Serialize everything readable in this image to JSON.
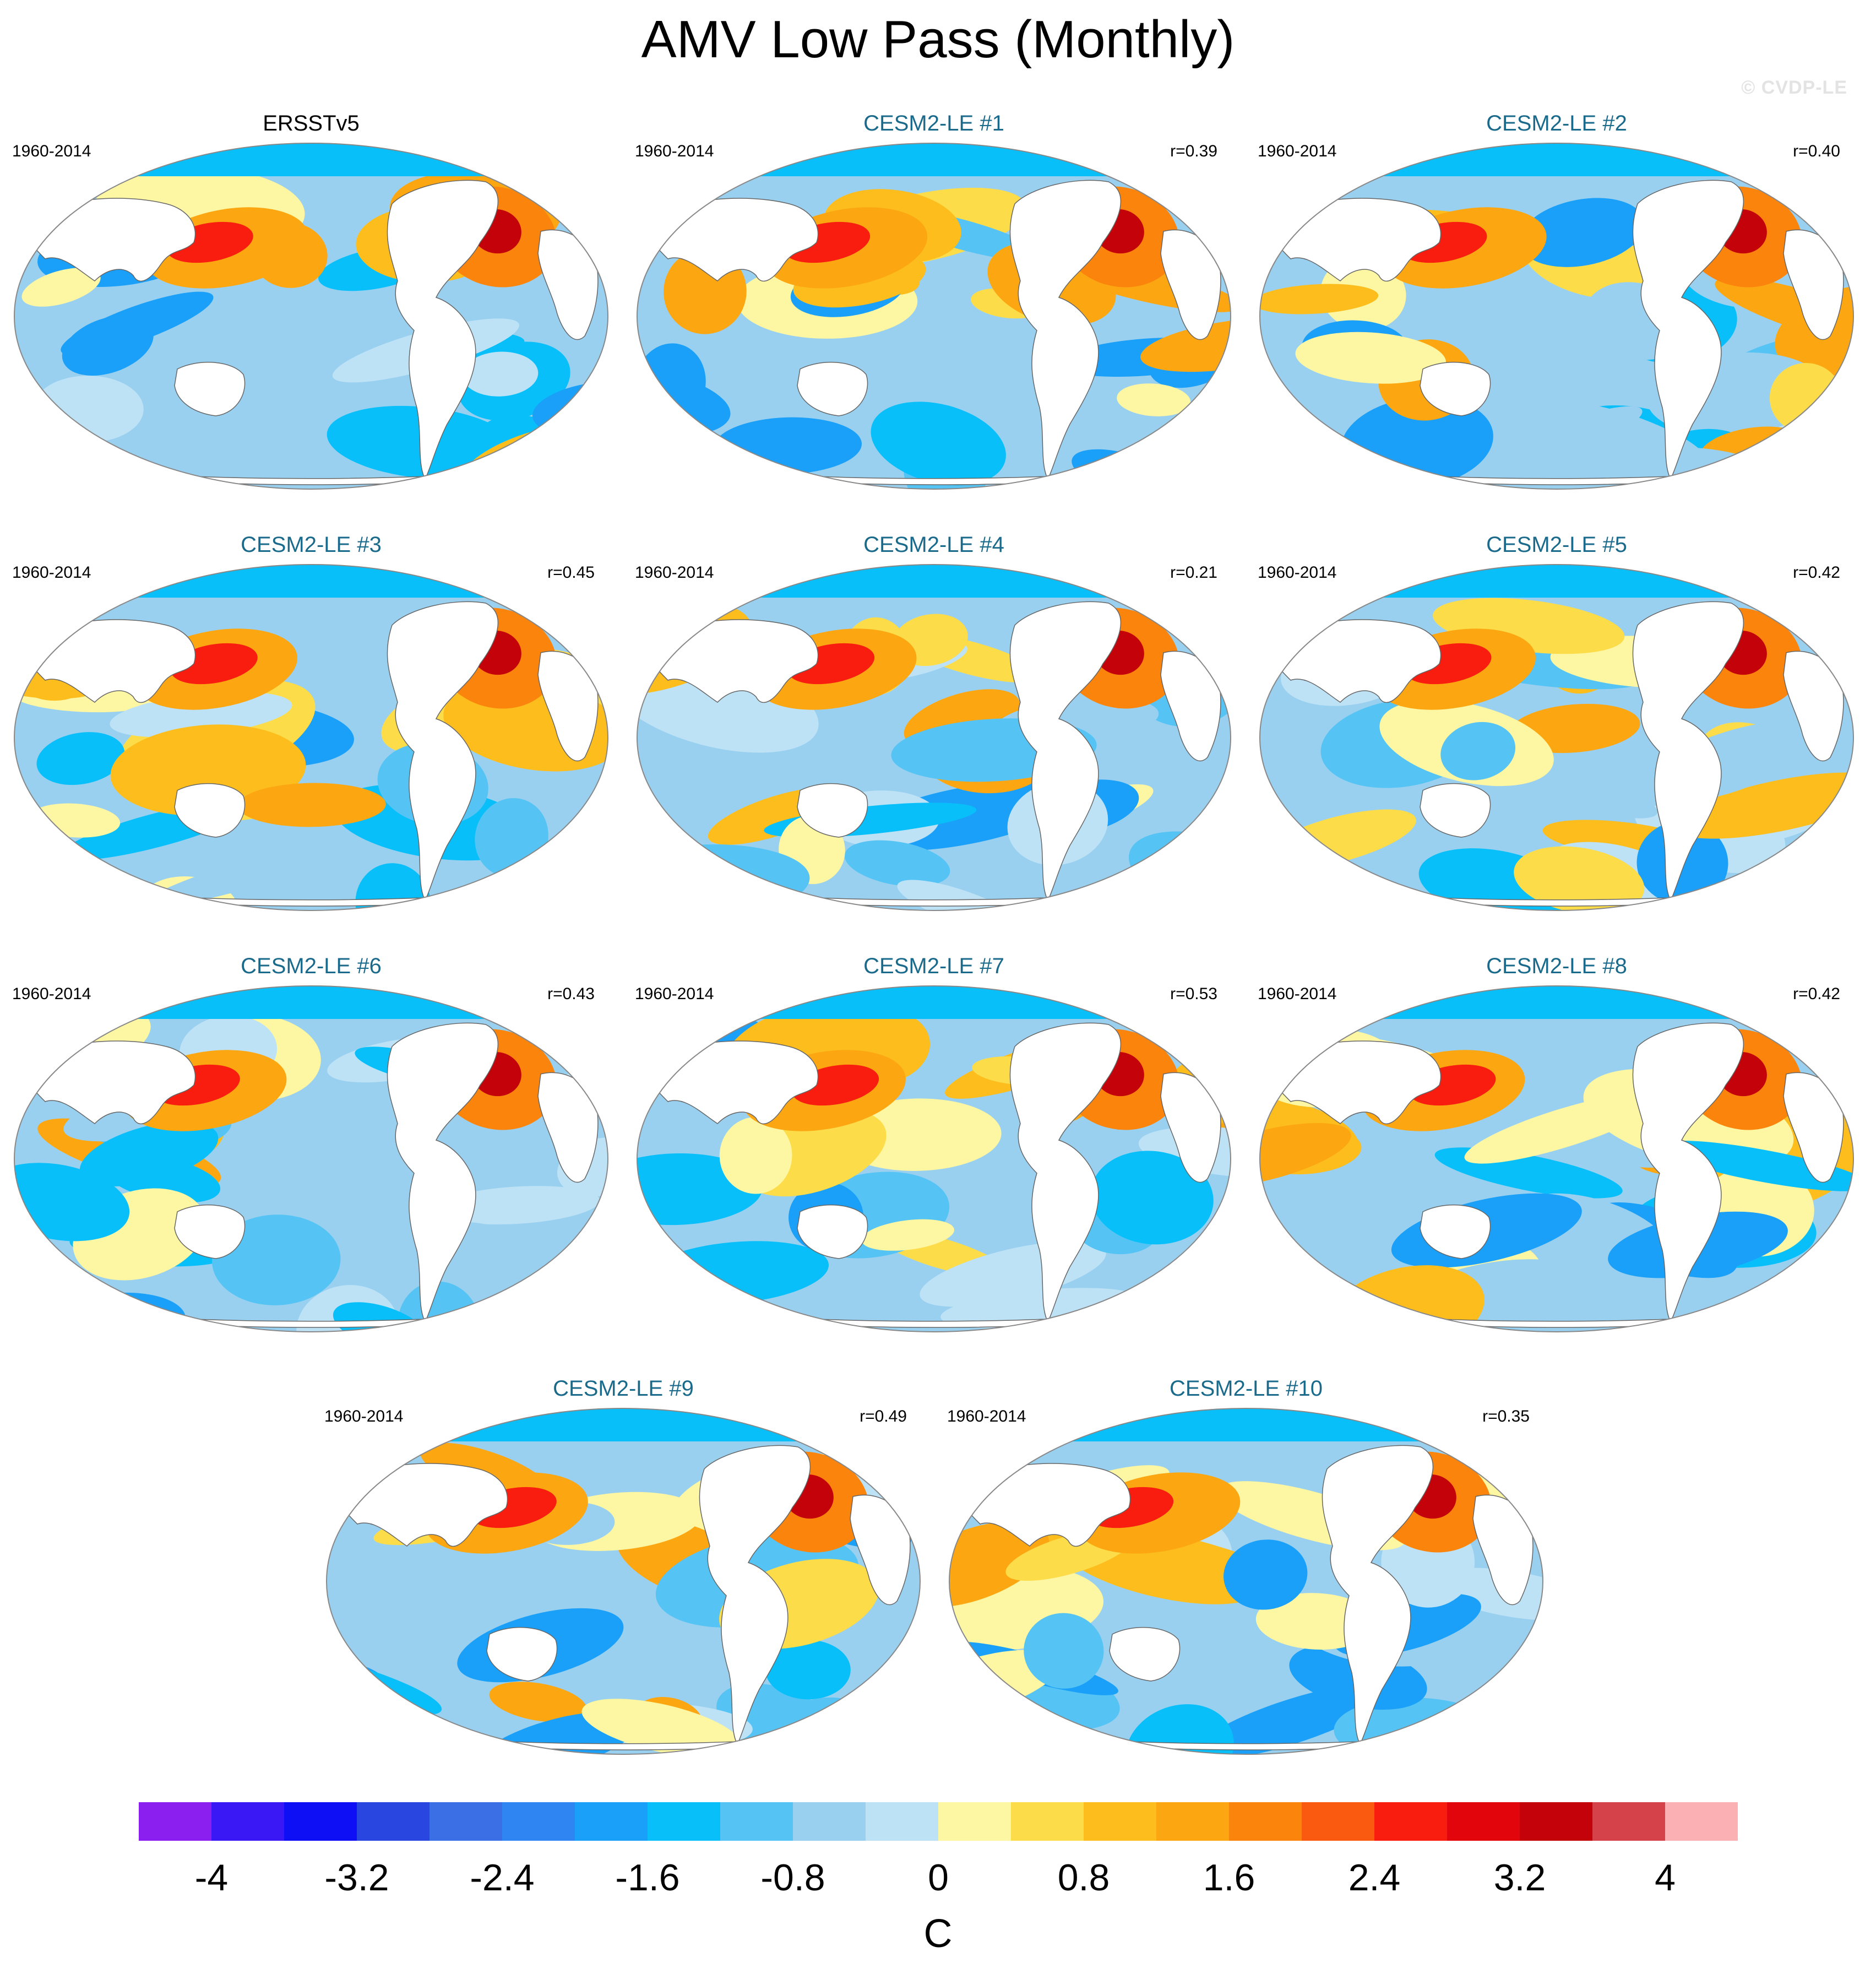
{
  "title": "AMV Low Pass (Monthly)",
  "watermark": "© CVDP-LE",
  "panels": [
    {
      "title": "ERSSTv5",
      "period": "1960-2014",
      "corr": "",
      "observed": true
    },
    {
      "title": "CESM2-LE #1",
      "period": "1960-2014",
      "corr": "r=0.39",
      "observed": false
    },
    {
      "title": "CESM2-LE #2",
      "period": "1960-2014",
      "corr": "r=0.40",
      "observed": false
    },
    {
      "title": "CESM2-LE #3",
      "period": "1960-2014",
      "corr": "r=0.45",
      "observed": false
    },
    {
      "title": "CESM2-LE #4",
      "period": "1960-2014",
      "corr": "r=0.21",
      "observed": false
    },
    {
      "title": "CESM2-LE #5",
      "period": "1960-2014",
      "corr": "r=0.42",
      "observed": false
    },
    {
      "title": "CESM2-LE #6",
      "period": "1960-2014",
      "corr": "r=0.43",
      "observed": false
    },
    {
      "title": "CESM2-LE #7",
      "period": "1960-2014",
      "corr": "r=0.53",
      "observed": false
    },
    {
      "title": "CESM2-LE #8",
      "period": "1960-2014",
      "corr": "r=0.42",
      "observed": false
    },
    {
      "title": "CESM2-LE #9",
      "period": "1960-2014",
      "corr": "r=0.49",
      "observed": false
    },
    {
      "title": "CESM2-LE #10",
      "period": "1960-2014",
      "corr": "r=0.35",
      "observed": false
    }
  ],
  "colorbar": {
    "labels": [
      "-4",
      "-3.2",
      "-2.4",
      "-1.6",
      "-0.8",
      "0",
      "0.8",
      "1.6",
      "2.4",
      "3.2",
      "4"
    ],
    "units": "C",
    "colors": [
      "#8b1fef",
      "#3a17f5",
      "#0f0ff5",
      "#2a46e0",
      "#3b6fe6",
      "#2f86f2",
      "#1aa0f8",
      "#08bff9",
      "#55c4f4",
      "#9ad0ef",
      "#bde2f6",
      "#fdf6a2",
      "#fddc4a",
      "#fcbd1d",
      "#fca612",
      "#fb840c",
      "#f95a0f",
      "#f81d0f",
      "#e2060c",
      "#c4020a",
      "#d6424a",
      "#fbb0b4"
    ]
  }
}
